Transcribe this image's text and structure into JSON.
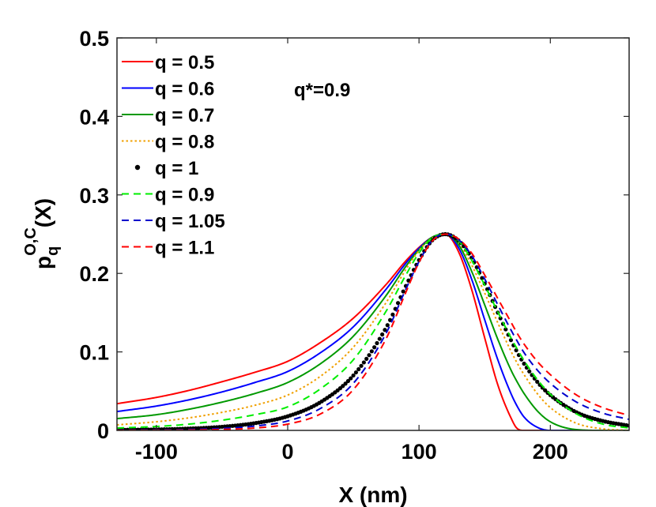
{
  "chart_data": {
    "type": "line",
    "title": "",
    "xlabel": "X (nm)",
    "ylabel": {
      "base": "p",
      "sub": "q",
      "sup": "O,C",
      "tail": "(X)"
    },
    "xlim": [
      -130,
      260
    ],
    "ylim": [
      0,
      0.5
    ],
    "xticks": [
      -100,
      0,
      100,
      200
    ],
    "xtick_labels": [
      "-100",
      "0",
      "100",
      "200"
    ],
    "yticks": [
      0,
      0.1,
      0.2,
      0.3,
      0.4,
      0.5
    ],
    "ytick_labels": [
      "0",
      "0.1",
      "0.2",
      "0.3",
      "0.4",
      "0.5"
    ],
    "grid": false,
    "legend_position": "top-left",
    "annotation": "q*=0.9",
    "x": [
      -130,
      -100,
      -75,
      -50,
      -25,
      0,
      25,
      50,
      75,
      90,
      100,
      110,
      120,
      130,
      140,
      150,
      160,
      170,
      175,
      180,
      190,
      200,
      220,
      240,
      260
    ],
    "series": [
      {
        "name": "q = 0.5",
        "color": "#ff0000",
        "dash": "solid",
        "marker": "none",
        "values": [
          0.034,
          0.042,
          0.051,
          0.062,
          0.074,
          0.088,
          0.112,
          0.143,
          0.186,
          0.216,
          0.233,
          0.246,
          0.25,
          0.228,
          0.18,
          0.118,
          0.058,
          0.016,
          0.002,
          0.0,
          0.0,
          0.0,
          0.0,
          0.0,
          0.0
        ]
      },
      {
        "name": "q = 0.6",
        "color": "#0000ff",
        "dash": "solid",
        "marker": "none",
        "values": [
          0.024,
          0.031,
          0.039,
          0.049,
          0.061,
          0.075,
          0.099,
          0.132,
          0.18,
          0.213,
          0.232,
          0.246,
          0.25,
          0.233,
          0.193,
          0.141,
          0.09,
          0.047,
          0.03,
          0.017,
          0.004,
          0.0,
          0.0,
          0.0,
          0.0
        ]
      },
      {
        "name": "q = 0.7",
        "color": "#009900",
        "dash": "solid",
        "marker": "none",
        "values": [
          0.015,
          0.02,
          0.027,
          0.036,
          0.047,
          0.061,
          0.085,
          0.12,
          0.172,
          0.209,
          0.23,
          0.246,
          0.25,
          0.237,
          0.203,
          0.16,
          0.116,
          0.077,
          0.061,
          0.047,
          0.025,
          0.011,
          0.001,
          0.0,
          0.0
        ]
      },
      {
        "name": "q = 0.8",
        "color": "#f0a000",
        "dash": "dot",
        "marker": "none",
        "values": [
          0.007,
          0.011,
          0.016,
          0.023,
          0.032,
          0.045,
          0.069,
          0.106,
          0.163,
          0.205,
          0.229,
          0.245,
          0.25,
          0.24,
          0.211,
          0.175,
          0.137,
          0.101,
          0.085,
          0.071,
          0.047,
          0.029,
          0.009,
          0.002,
          0.0
        ]
      },
      {
        "name": "q = 1",
        "color": "#000000",
        "dash": "none",
        "marker": "dot",
        "values": [
          0.0006,
          0.0012,
          0.0023,
          0.0046,
          0.0092,
          0.018,
          0.036,
          0.07,
          0.131,
          0.184,
          0.217,
          0.242,
          0.25,
          0.242,
          0.22,
          0.187,
          0.15,
          0.115,
          0.099,
          0.085,
          0.062,
          0.045,
          0.023,
          0.012,
          0.006
        ]
      },
      {
        "name": "q = 0.9",
        "color": "#00ee00",
        "dash": "dash",
        "marker": "none",
        "values": [
          0.003,
          0.005,
          0.008,
          0.013,
          0.02,
          0.03,
          0.053,
          0.09,
          0.152,
          0.198,
          0.226,
          0.245,
          0.25,
          0.242,
          0.217,
          0.185,
          0.151,
          0.118,
          0.103,
          0.089,
          0.065,
          0.046,
          0.021,
          0.008,
          0.003
        ]
      },
      {
        "name": "q = 1.05",
        "color": "#0000cc",
        "dash": "dash",
        "marker": "none",
        "values": [
          0.0003,
          0.0006,
          0.0012,
          0.0025,
          0.0055,
          0.012,
          0.028,
          0.06,
          0.124,
          0.18,
          0.215,
          0.242,
          0.25,
          0.243,
          0.223,
          0.193,
          0.16,
          0.128,
          0.113,
          0.099,
          0.077,
          0.06,
          0.036,
          0.022,
          0.014
        ]
      },
      {
        "name": "q = 1.1",
        "color": "#ff0000",
        "dash": "dash",
        "marker": "none",
        "values": [
          0.0001,
          0.0002,
          0.0005,
          0.0012,
          0.003,
          0.008,
          0.021,
          0.052,
          0.117,
          0.176,
          0.214,
          0.241,
          0.25,
          0.244,
          0.226,
          0.198,
          0.168,
          0.138,
          0.123,
          0.11,
          0.088,
          0.071,
          0.045,
          0.029,
          0.019
        ]
      }
    ]
  }
}
